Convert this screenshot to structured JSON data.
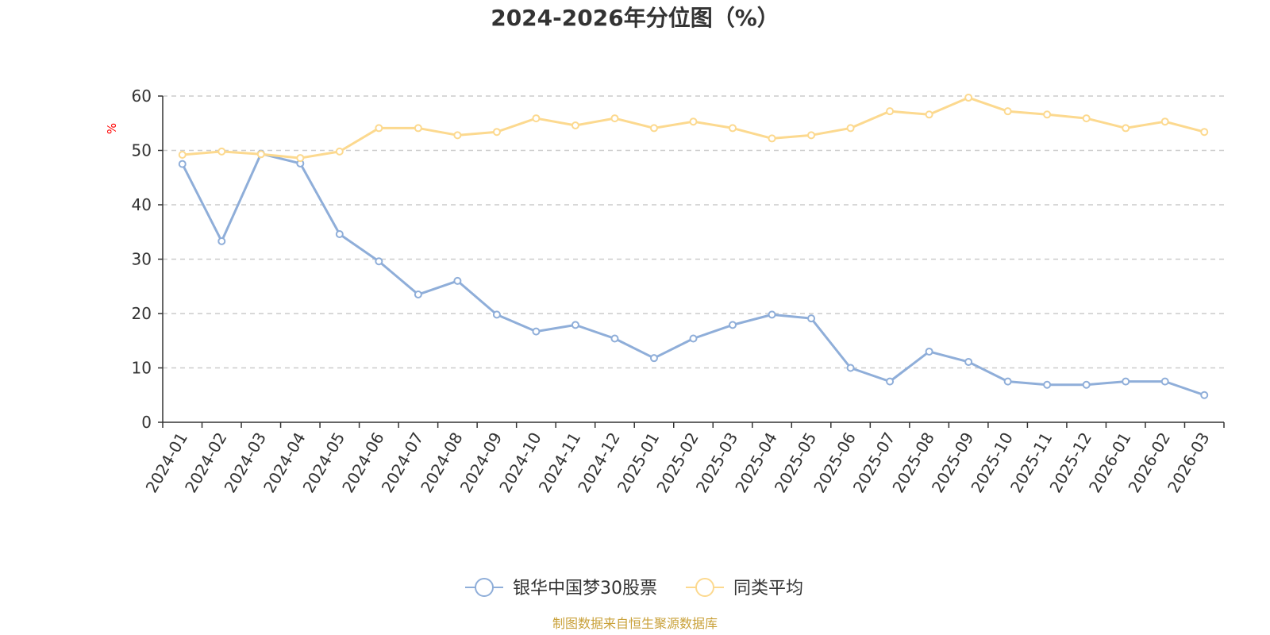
{
  "chart_data": {
    "type": "line",
    "title": "2024-2026年分位图（%）",
    "ylabel": "%",
    "ylim": [
      0,
      60
    ],
    "yticks": [
      0,
      10,
      20,
      30,
      40,
      50,
      60
    ],
    "grid": true,
    "legend_position": "bottom",
    "categories": [
      "2024-01",
      "2024-02",
      "2024-03",
      "2024-04",
      "2024-05",
      "2024-06",
      "2024-07",
      "2024-08",
      "2024-09",
      "2024-10",
      "2024-11",
      "2024-12",
      "2025-01",
      "2025-02",
      "2025-03",
      "2025-04",
      "2025-05",
      "2025-06",
      "2025-07",
      "2025-08",
      "2025-09",
      "2025-10",
      "2025-11",
      "2025-12",
      "2026-01",
      "2026-02",
      "2026-03"
    ],
    "series": [
      {
        "name": "银华中国梦30股票",
        "color": "#8faed9",
        "values": [
          47.5,
          33.3,
          49.4,
          47.6,
          34.6,
          29.6,
          23.5,
          26.0,
          19.8,
          16.7,
          17.9,
          15.4,
          11.8,
          15.4,
          17.9,
          19.8,
          19.1,
          10.0,
          7.5,
          13.0,
          11.1,
          7.5,
          6.9,
          6.9,
          7.5,
          7.5,
          5.0
        ]
      },
      {
        "name": "同类平均",
        "color": "#fcd98f",
        "values": [
          49.2,
          49.8,
          49.3,
          48.6,
          49.8,
          54.1,
          54.1,
          52.8,
          53.4,
          55.9,
          54.6,
          55.9,
          54.1,
          55.3,
          54.1,
          52.2,
          52.8,
          54.1,
          57.2,
          56.6,
          59.7,
          57.2,
          56.6,
          55.9,
          54.1,
          55.3,
          53.4
        ]
      }
    ]
  },
  "source_text": "制图数据来自恒生聚源数据库",
  "colors": {
    "axis": "#333333",
    "grid": "#cccccc",
    "unit": "#ff0000",
    "source": "#c9a13a"
  }
}
